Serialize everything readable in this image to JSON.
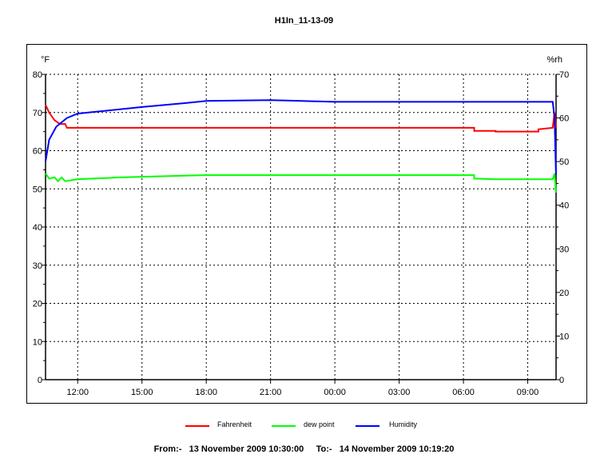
{
  "chart_data": {
    "type": "line",
    "title": "H1In_11-13-09",
    "y_left": {
      "unit": "°F",
      "min": 0,
      "max": 80,
      "ticks": [
        0,
        10,
        20,
        30,
        40,
        50,
        60,
        70,
        80
      ]
    },
    "y_right": {
      "unit": "%rh",
      "min": 0,
      "max": 70,
      "ticks": [
        0,
        10,
        20,
        30,
        40,
        50,
        60,
        70
      ]
    },
    "x_axis": {
      "start": "2009-11-13 10:30:00",
      "end": "2009-11-14 10:19:20",
      "tick_labels": [
        "12:00",
        "15:00",
        "18:00",
        "21:00",
        "00:00",
        "03:00",
        "06:00",
        "09:00"
      ],
      "tick_times": [
        "2009-11-13 12:00",
        "2009-11-13 15:00",
        "2009-11-13 18:00",
        "2009-11-13 21:00",
        "2009-11-14 00:00",
        "2009-11-14 03:00",
        "2009-11-14 06:00",
        "2009-11-14 09:00"
      ]
    },
    "grid": true,
    "legend_position": "bottom",
    "series": [
      {
        "name": "Fahrenheit",
        "color": "#ff0000",
        "axis": "left",
        "points": [
          [
            "2009-11-13 10:30",
            72
          ],
          [
            "2009-11-13 10:40",
            70
          ],
          [
            "2009-11-13 10:55",
            68
          ],
          [
            "2009-11-13 11:10",
            67
          ],
          [
            "2009-11-13 11:25",
            67
          ],
          [
            "2009-11-13 11:30",
            66
          ],
          [
            "2009-11-13 12:00",
            66
          ],
          [
            "2009-11-14 06:30",
            66
          ],
          [
            "2009-11-14 06:30",
            65.2
          ],
          [
            "2009-11-14 07:30",
            65.2
          ],
          [
            "2009-11-14 07:30",
            65
          ],
          [
            "2009-11-14 09:30",
            65
          ],
          [
            "2009-11-14 09:30",
            65.6
          ],
          [
            "2009-11-14 10:10",
            66
          ],
          [
            "2009-11-14 10:15",
            70
          ],
          [
            "2009-11-14 10:19",
            66
          ]
        ]
      },
      {
        "name": "dew point",
        "color": "#00ff00",
        "axis": "left",
        "points": [
          [
            "2009-11-13 10:30",
            54
          ],
          [
            "2009-11-13 10:40",
            52.7
          ],
          [
            "2009-11-13 10:55",
            53
          ],
          [
            "2009-11-13 11:05",
            52
          ],
          [
            "2009-11-13 11:15",
            53
          ],
          [
            "2009-11-13 11:25",
            52
          ],
          [
            "2009-11-13 12:00",
            52.5
          ],
          [
            "2009-11-13 14:00",
            53
          ],
          [
            "2009-11-13 18:00",
            53.6
          ],
          [
            "2009-11-14 06:30",
            53.6
          ],
          [
            "2009-11-14 06:30",
            52.7
          ],
          [
            "2009-11-14 07:30",
            52.5
          ],
          [
            "2009-11-14 10:10",
            52.5
          ],
          [
            "2009-11-14 10:15",
            54
          ],
          [
            "2009-11-14 10:19",
            49
          ]
        ]
      },
      {
        "name": "Humidity",
        "color": "#0000ff",
        "axis": "right",
        "points": [
          [
            "2009-11-13 10:30",
            50
          ],
          [
            "2009-11-13 10:40",
            55
          ],
          [
            "2009-11-13 11:00",
            58
          ],
          [
            "2009-11-13 11:30",
            60
          ],
          [
            "2009-11-13 12:00",
            61
          ],
          [
            "2009-11-13 13:00",
            61.5
          ],
          [
            "2009-11-13 15:00",
            62.5
          ],
          [
            "2009-11-13 17:00",
            63.4
          ],
          [
            "2009-11-13 18:00",
            63.9
          ],
          [
            "2009-11-13 21:00",
            64.1
          ],
          [
            "2009-11-14 00:00",
            63.7
          ],
          [
            "2009-11-14 09:00",
            63.7
          ],
          [
            "2009-11-14 10:10",
            63.7
          ],
          [
            "2009-11-14 10:15",
            60
          ],
          [
            "2009-11-14 10:19",
            47
          ]
        ]
      }
    ]
  },
  "footer": {
    "from_label": "From:-",
    "from_value": "13 November 2009 10:30:00",
    "to_label": "To:-",
    "to_value": "14 November 2009 10:19:20"
  }
}
